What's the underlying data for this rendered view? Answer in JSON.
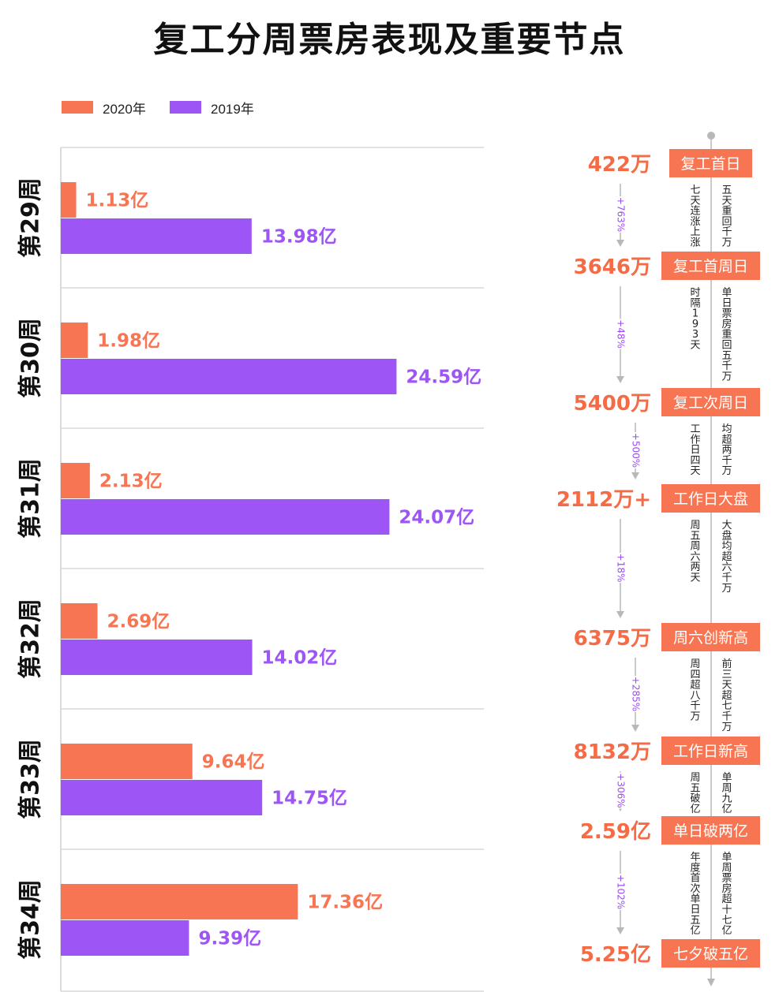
{
  "title": "复工分周票房表现及重要节点",
  "colors": {
    "y2020": "#f87553",
    "y2019": "#9e55f6",
    "value_orange": "#f56b45",
    "pct_purple": "#9b4cf2",
    "grid": "#d9d9d9"
  },
  "legend": {
    "y2020": "2020年",
    "y2019": "2019年"
  },
  "chart_data": {
    "type": "bar",
    "orientation": "horizontal",
    "title": "复工分周票房表现及重要节点",
    "categories": [
      "第29周",
      "第30周",
      "第31周",
      "第32周",
      "第33周",
      "第34周"
    ],
    "unit": "亿",
    "xlim": [
      0,
      30
    ],
    "series": [
      {
        "name": "2020年",
        "values": [
          1.13,
          1.98,
          2.13,
          2.69,
          9.64,
          17.36
        ],
        "labels": [
          "1.13亿",
          "1.98亿",
          "2.13亿",
          "2.69亿",
          "9.64亿",
          "17.36亿"
        ]
      },
      {
        "name": "2019年",
        "values": [
          13.98,
          24.59,
          24.07,
          14.02,
          14.75,
          9.39
        ],
        "labels": [
          "13.98亿",
          "24.59亿",
          "24.07亿",
          "14.02亿",
          "14.75亿",
          "9.39亿"
        ]
      }
    ]
  },
  "timeline": {
    "events": [
      {
        "value": "422万",
        "label": "复工首日"
      },
      {
        "value": "3646万",
        "label": "复工首周日"
      },
      {
        "value": "5400万",
        "label": "复工次周日"
      },
      {
        "value": "2112万+",
        "label": "工作日大盘"
      },
      {
        "value": "6375万",
        "label": "周六创新高"
      },
      {
        "value": "8132万",
        "label": "工作日新高"
      },
      {
        "value": "2.59亿",
        "label": "单日破两亿"
      },
      {
        "value": "5.25亿",
        "label": "七夕破五亿"
      }
    ],
    "segments": [
      {
        "pct": "+763%",
        "note_left": "七天连涨上涨",
        "note_right": "五天重回千万"
      },
      {
        "pct": "+48%",
        "note_left": "时隔193天",
        "note_right": "单日票房重回五千万"
      },
      {
        "pct": "+500%",
        "note_left": "工作日四天",
        "note_right": "均超两千万"
      },
      {
        "pct": "+18%",
        "note_left": "周五周六两天",
        "note_right": "大盘均超六千万"
      },
      {
        "pct": "+285%",
        "note_left": "周四超八千万",
        "note_right": "前三天超七千万"
      },
      {
        "pct": "+306%",
        "note_left": "周五破亿",
        "note_right": "单周九亿"
      },
      {
        "pct": "+102%",
        "note_left": "年度首次单日五亿",
        "note_right": "单周票房超十七亿"
      }
    ]
  }
}
